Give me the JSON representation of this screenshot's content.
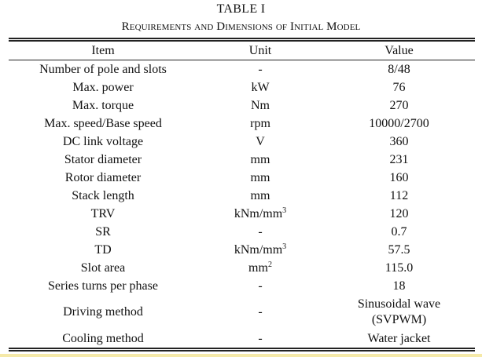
{
  "table": {
    "label": "TABLE I",
    "caption": "Requirements and Dimensions of Initial Model",
    "headers": {
      "item": "Item",
      "unit": "Unit",
      "value": "Value"
    },
    "rows": [
      {
        "item": "Number of pole and slots",
        "unit": "-",
        "value": "8/48"
      },
      {
        "item": "Max. power",
        "unit": "kW",
        "value": "76"
      },
      {
        "item": "Max. torque",
        "unit": "Nm",
        "value": "270"
      },
      {
        "item": "Max. speed/Base speed",
        "unit": "rpm",
        "value": "10000/2700"
      },
      {
        "item": "DC link voltage",
        "unit": "V",
        "value": "360"
      },
      {
        "item": "Stator diameter",
        "unit": "mm",
        "value": "231"
      },
      {
        "item": "Rotor diameter",
        "unit": "mm",
        "value": "160"
      },
      {
        "item": "Stack length",
        "unit": "mm",
        "value": "112"
      },
      {
        "item": "TRV",
        "unit": "kNm/mm",
        "unit_sup": "3",
        "value": "120"
      },
      {
        "item": "SR",
        "unit": "-",
        "value": "0.7"
      },
      {
        "item": "TD",
        "unit": "kNm/mm",
        "unit_sup": "3",
        "value": "57.5"
      },
      {
        "item": "Slot area",
        "unit": "mm",
        "unit_sup": "2",
        "value": "115.0"
      },
      {
        "item": "Series turns per phase",
        "unit": "-",
        "value": "18"
      },
      {
        "item": "Driving method",
        "unit": "-",
        "value": "Sinusoidal wave",
        "value_line2": "(SVPWM)"
      },
      {
        "item": "Cooling method",
        "unit": "-",
        "value": "Water jacket"
      }
    ]
  }
}
